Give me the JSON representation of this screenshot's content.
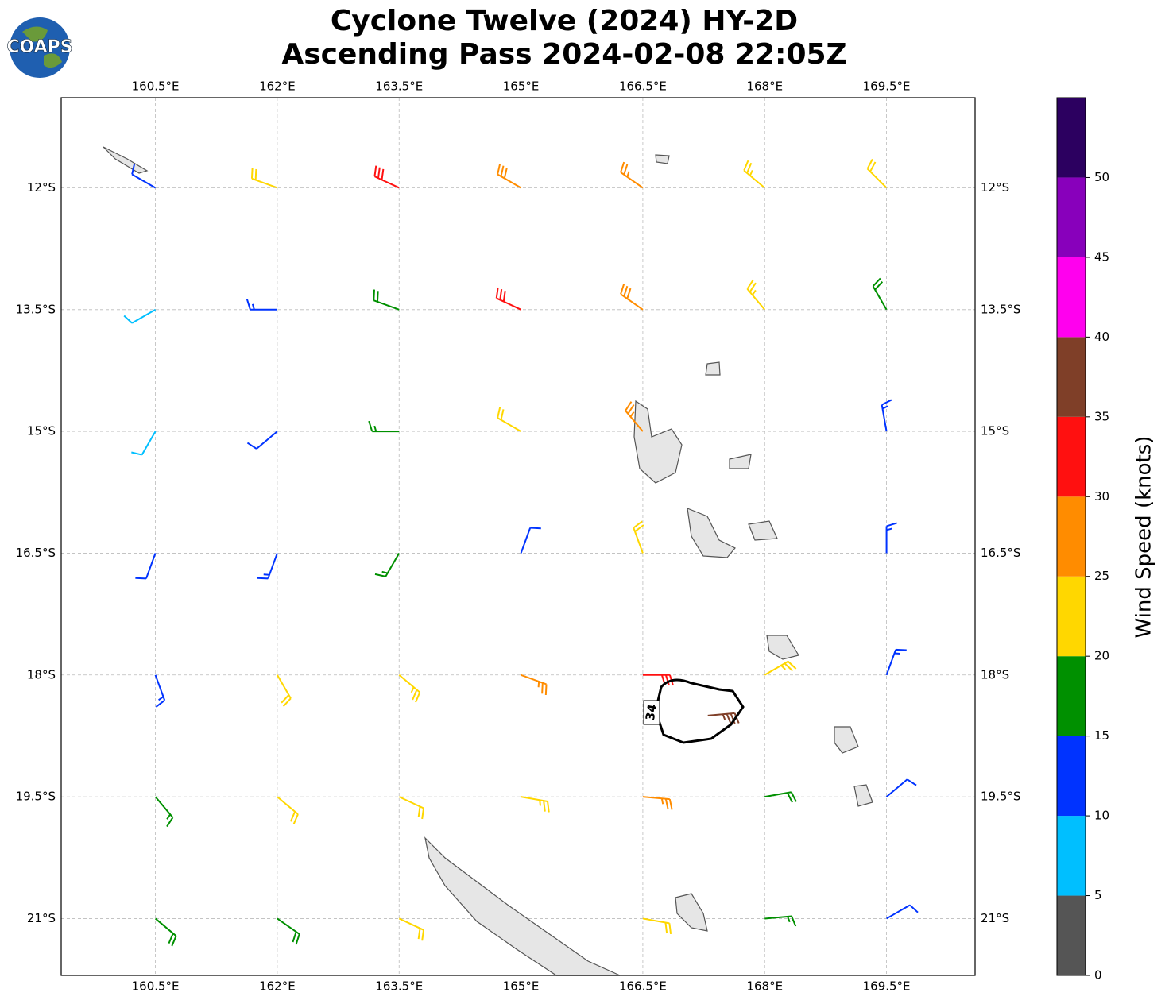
{
  "logo_text": "COAPS",
  "chart_data": {
    "type": "barbs",
    "title": "Cyclone Twelve (2024) HY-2D",
    "subtitle": "Ascending Pass 2024-02-08 22:05Z",
    "xlim": [
      159.34,
      170.59
    ],
    "ylim": [
      -21.7,
      -10.89
    ],
    "xticks": [
      {
        "value": 160.5,
        "label": "160.5°E"
      },
      {
        "value": 162,
        "label": "162°E"
      },
      {
        "value": 163.5,
        "label": "163.5°E"
      },
      {
        "value": 165,
        "label": "165°E"
      },
      {
        "value": 166.5,
        "label": "166.5°E"
      },
      {
        "value": 168,
        "label": "168°E"
      },
      {
        "value": 169.5,
        "label": "169.5°E"
      }
    ],
    "yticks": [
      {
        "value": -12,
        "label": "12°S"
      },
      {
        "value": -13.5,
        "label": "13.5°S"
      },
      {
        "value": -15,
        "label": "15°S"
      },
      {
        "value": -16.5,
        "label": "16.5°S"
      },
      {
        "value": -18,
        "label": "18°S"
      },
      {
        "value": -19.5,
        "label": "19.5°S"
      },
      {
        "value": -21,
        "label": "21°S"
      }
    ],
    "grid": true,
    "barbs": {
      "lon": [
        160.5,
        162,
        163.5,
        165,
        166.5,
        168,
        169.5,
        160.5,
        162,
        163.5,
        165,
        166.5,
        168,
        169.5,
        160.5,
        162,
        163.5,
        165,
        166.5,
        169.5,
        160.5,
        162,
        163.5,
        165,
        166.5,
        169.5,
        160.5,
        162,
        163.5,
        165,
        166.5,
        168,
        169.5,
        160.5,
        162,
        163.5,
        165,
        166.5,
        168,
        169.5,
        160.5,
        162,
        163.5,
        166.5,
        168,
        169.5,
        167.3
      ],
      "lat": [
        -12,
        -12,
        -12,
        -12,
        -12,
        -12,
        -12,
        -13.5,
        -13.5,
        -13.5,
        -13.5,
        -13.5,
        -13.5,
        -13.5,
        -15,
        -15,
        -15,
        -15,
        -15,
        -15,
        -16.5,
        -16.5,
        -16.5,
        -16.5,
        -16.5,
        -16.5,
        -18,
        -18,
        -18,
        -18,
        -18,
        -18,
        -18,
        -19.5,
        -19.5,
        -19.5,
        -19.5,
        -19.5,
        -19.5,
        -19.5,
        -21,
        -21,
        -21,
        -21,
        -21,
        -21,
        -18.5
      ],
      "speed": [
        12,
        20,
        32,
        28,
        27,
        23,
        22,
        8,
        13,
        18,
        31,
        28,
        23,
        18,
        8,
        12,
        17,
        22,
        26,
        13,
        12,
        14,
        16,
        12,
        22,
        14,
        14,
        21,
        23,
        27,
        32,
        24,
        13,
        17,
        21,
        22,
        23,
        27,
        18,
        12,
        18,
        19,
        21,
        22,
        17,
        12,
        37
      ],
      "direction": [
        300,
        290,
        295,
        300,
        305,
        310,
        315,
        240,
        270,
        290,
        295,
        305,
        320,
        330,
        210,
        230,
        270,
        300,
        320,
        350,
        200,
        200,
        210,
        20,
        340,
        0,
        160,
        150,
        130,
        110,
        90,
        60,
        20,
        140,
        130,
        115,
        100,
        95,
        80,
        50,
        130,
        125,
        115,
        100,
        85,
        60,
        85
      ]
    },
    "contour_level": 34,
    "colorbar": {
      "label": "Wind Speed (knots)",
      "bins": [
        0,
        5,
        10,
        15,
        20,
        25,
        30,
        35,
        40,
        45,
        50,
        55
      ],
      "colors": [
        "#555555",
        "#00bfff",
        "#0033ff",
        "#009000",
        "#ffd700",
        "#ff8c00",
        "#ff1010",
        "#7f3f28",
        "#ff00ee",
        "#8800bb",
        "#2c0060"
      ],
      "ticks": [
        0,
        5,
        10,
        15,
        20,
        25,
        30,
        35,
        40,
        45,
        50
      ]
    }
  }
}
